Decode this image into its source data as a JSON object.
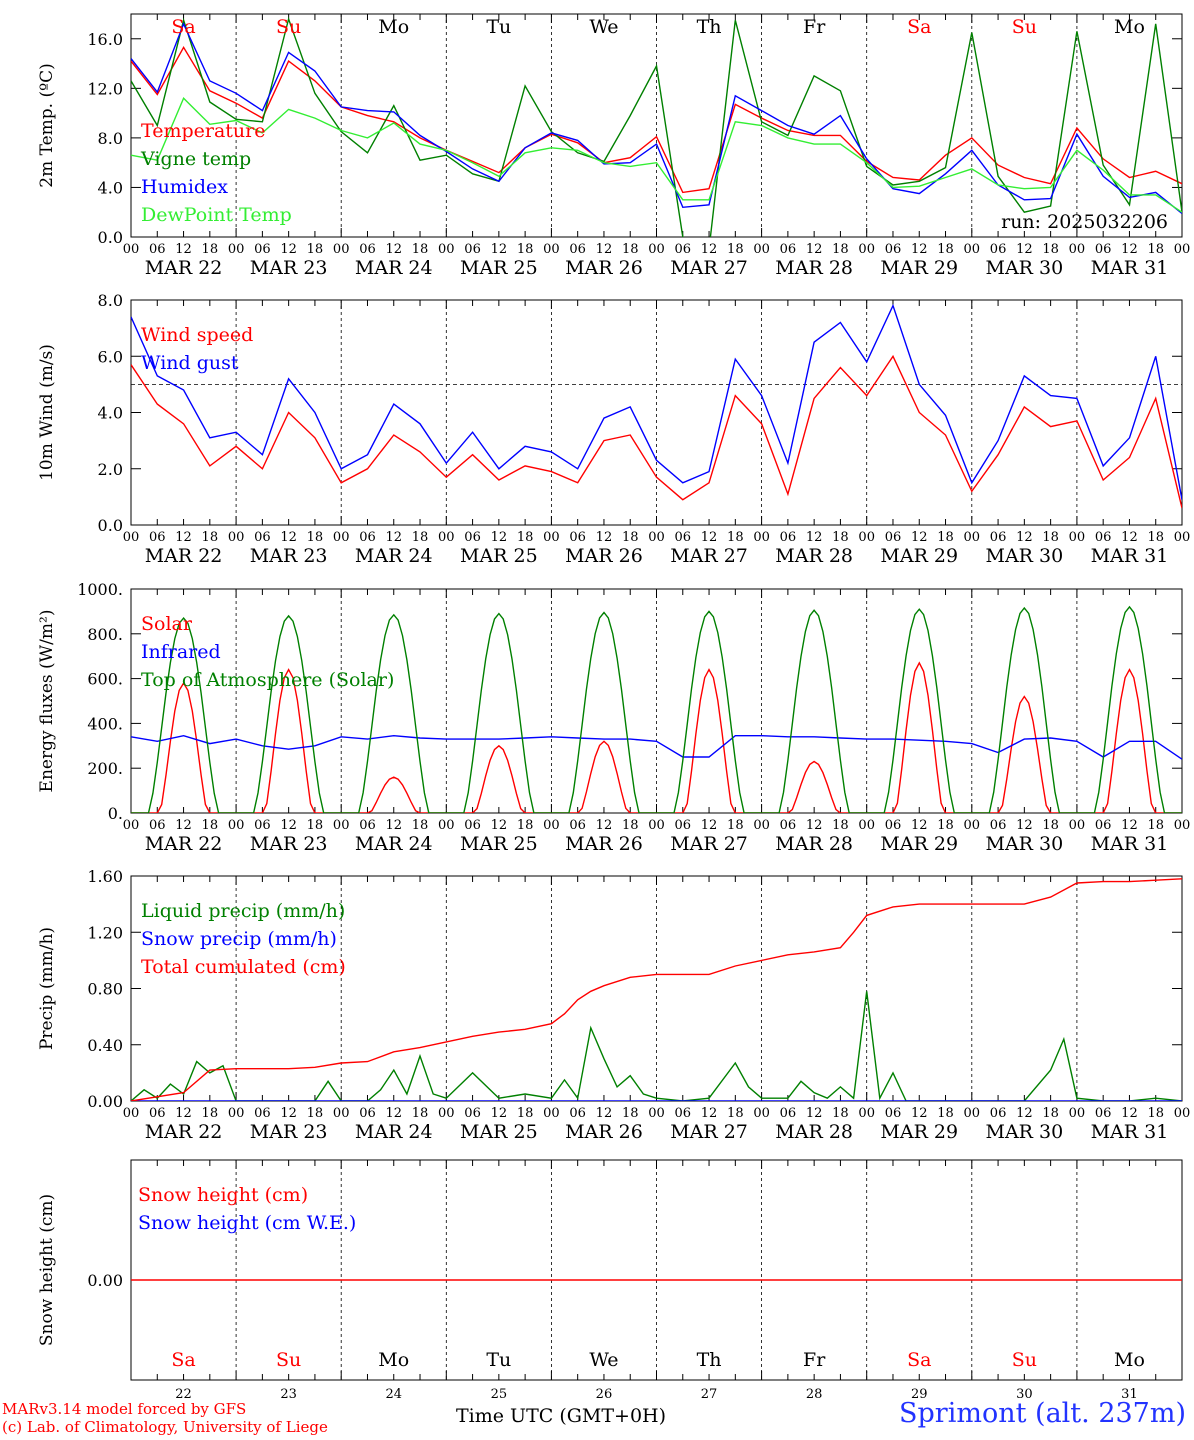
{
  "run_label": "run: 2025032206",
  "station_label": "Sprimont (alt. 237m)",
  "credit_lines": [
    "MARv3.14 model forced by GFS",
    "(c) Lab. of Climatology, University of Liege"
  ],
  "time_axis_label": "Time UTC (GMT+0H)",
  "colors": {
    "red": "#ff0000",
    "green": "#008000",
    "blue": "#0000ff",
    "lightgreen": "#33ee33",
    "black": "#000000"
  },
  "days": [
    {
      "abbr": "Sa",
      "date": "MAR 22",
      "num": "22",
      "weekend": true
    },
    {
      "abbr": "Su",
      "date": "MAR 23",
      "num": "23",
      "weekend": true
    },
    {
      "abbr": "Mo",
      "date": "MAR 24",
      "num": "24",
      "weekend": false
    },
    {
      "abbr": "Tu",
      "date": "MAR 25",
      "num": "25",
      "weekend": false
    },
    {
      "abbr": "We",
      "date": "MAR 26",
      "num": "26",
      "weekend": false
    },
    {
      "abbr": "Th",
      "date": "MAR 27",
      "num": "27",
      "weekend": false
    },
    {
      "abbr": "Fr",
      "date": "MAR 28",
      "num": "28",
      "weekend": false
    },
    {
      "abbr": "Sa",
      "date": "MAR 29",
      "num": "29",
      "weekend": true
    },
    {
      "abbr": "Su",
      "date": "MAR 30",
      "num": "30",
      "weekend": true
    },
    {
      "abbr": "Mo",
      "date": "MAR 31",
      "num": "31",
      "weekend": false
    }
  ],
  "hour_ticks": [
    "00",
    "06",
    "12",
    "18"
  ],
  "chart_data": [
    {
      "type": "line",
      "ylabel": "2m Temp. (ºC)",
      "ylim": [
        0,
        18
      ],
      "yticks": [
        0,
        4,
        8,
        12,
        16
      ],
      "ytick_labels": [
        "0.0",
        "4.0",
        "8.0",
        "12.0",
        "16.0"
      ],
      "grid": "vertical dashed lines at day boundaries",
      "legend_position": "left",
      "series": [
        {
          "name": "Temperature",
          "color": "#ff0000",
          "x": [
            0,
            6,
            12,
            18,
            24,
            30,
            36,
            42,
            48,
            54,
            60,
            66,
            72,
            78,
            84,
            90,
            96,
            102,
            108,
            114,
            120,
            126,
            132,
            138,
            144,
            150,
            156,
            162,
            168,
            174,
            180,
            186,
            192,
            198,
            204,
            210,
            216,
            222,
            228,
            234,
            240
          ],
          "y": [
            14.2,
            11.5,
            15.3,
            11.8,
            10.8,
            9.6,
            14.2,
            12.6,
            10.5,
            9.8,
            9.3,
            8.0,
            7.0,
            6.1,
            5.2,
            7.2,
            8.3,
            7.6,
            6.0,
            6.4,
            8.1,
            3.6,
            3.9,
            10.7,
            9.6,
            8.6,
            8.2,
            8.2,
            6.1,
            4.8,
            4.6,
            6.6,
            8.0,
            5.8,
            4.8,
            4.3,
            8.8,
            6.3,
            4.8,
            5.3,
            4.3
          ]
        },
        {
          "name": "Vigne temp",
          "color": "#008000",
          "x": [
            0,
            6,
            12,
            18,
            24,
            30,
            36,
            42,
            48,
            54,
            60,
            66,
            72,
            78,
            84,
            90,
            96,
            102,
            108,
            114,
            120,
            126,
            132,
            138,
            144,
            150,
            156,
            162,
            168,
            174,
            180,
            186,
            192,
            198,
            204,
            210,
            216,
            222,
            228,
            234,
            240
          ],
          "y": [
            12.6,
            9.0,
            17.5,
            10.9,
            9.5,
            9.3,
            17.6,
            11.6,
            8.5,
            6.8,
            10.6,
            6.2,
            6.6,
            5.1,
            4.5,
            12.2,
            8.5,
            6.8,
            6.1,
            9.8,
            13.8,
            0.0,
            -1.0,
            17.5,
            9.3,
            8.2,
            13.0,
            11.8,
            5.7,
            4.2,
            4.5,
            5.6,
            16.5,
            4.9,
            2.0,
            2.5,
            16.6,
            5.8,
            2.6,
            17.2,
            2.0
          ]
        },
        {
          "name": "Humidex",
          "color": "#0000ff",
          "x": [
            0,
            6,
            12,
            18,
            24,
            30,
            36,
            42,
            48,
            54,
            60,
            66,
            72,
            78,
            84,
            90,
            96,
            102,
            108,
            114,
            120,
            126,
            132,
            138,
            144,
            150,
            156,
            162,
            168,
            174,
            180,
            186,
            192,
            198,
            204,
            210,
            216,
            222,
            228,
            234,
            240
          ],
          "y": [
            14.4,
            11.7,
            17.2,
            12.6,
            11.6,
            10.2,
            14.9,
            13.4,
            10.5,
            10.2,
            10.1,
            8.2,
            6.9,
            5.5,
            4.5,
            7.2,
            8.4,
            7.8,
            5.9,
            6.0,
            7.5,
            2.4,
            2.6,
            11.4,
            10.2,
            9.0,
            8.3,
            9.8,
            6.3,
            3.9,
            3.5,
            5.1,
            7.0,
            4.2,
            3.0,
            3.1,
            8.3,
            4.9,
            3.2,
            3.6,
            1.9
          ]
        },
        {
          "name": "DewPoint Temp",
          "color": "#33ee33",
          "x": [
            0,
            6,
            12,
            18,
            24,
            30,
            36,
            42,
            48,
            54,
            60,
            66,
            72,
            78,
            84,
            90,
            96,
            102,
            108,
            114,
            120,
            126,
            132,
            138,
            144,
            150,
            156,
            162,
            168,
            174,
            180,
            186,
            192,
            198,
            204,
            210,
            216,
            222,
            228,
            234,
            240
          ],
          "y": [
            6.6,
            6.2,
            11.2,
            9.1,
            9.4,
            8.4,
            10.3,
            9.6,
            8.6,
            8.0,
            9.2,
            7.5,
            7.0,
            6.0,
            4.9,
            6.8,
            7.2,
            7.0,
            6.0,
            5.7,
            6.0,
            3.0,
            3.0,
            9.3,
            9.0,
            8.0,
            7.5,
            7.5,
            6.0,
            4.0,
            4.1,
            4.8,
            5.5,
            4.2,
            3.9,
            4.0,
            7.0,
            5.4,
            3.4,
            3.4,
            2.0
          ]
        }
      ]
    },
    {
      "type": "line",
      "ylabel": "10m Wind (m/s)",
      "ylim": [
        0,
        8
      ],
      "yticks": [
        0,
        2,
        4,
        6,
        8
      ],
      "ytick_labels": [
        "0.0",
        "2.0",
        "4.0",
        "6.0",
        "8.0"
      ],
      "reference_line": 5,
      "legend_position": "left",
      "series": [
        {
          "name": "Wind speed",
          "color": "#ff0000",
          "x": [
            0,
            6,
            12,
            18,
            24,
            30,
            36,
            42,
            48,
            54,
            60,
            66,
            72,
            78,
            84,
            90,
            96,
            102,
            108,
            114,
            120,
            126,
            132,
            138,
            144,
            150,
            156,
            162,
            168,
            174,
            180,
            186,
            192,
            198,
            204,
            210,
            216,
            222,
            228,
            234,
            240
          ],
          "y": [
            5.7,
            4.3,
            3.6,
            2.1,
            2.8,
            2.0,
            4.0,
            3.1,
            1.5,
            2.0,
            3.2,
            2.6,
            1.7,
            2.5,
            1.6,
            2.1,
            1.9,
            1.5,
            3.0,
            3.2,
            1.7,
            0.9,
            1.5,
            4.6,
            3.6,
            1.1,
            4.5,
            5.6,
            4.6,
            6.0,
            4.0,
            3.2,
            1.2,
            2.5,
            4.2,
            3.5,
            3.7,
            1.6,
            2.4,
            4.5,
            0.6
          ]
        },
        {
          "name": "Wind gust",
          "color": "#0000ff",
          "x": [
            0,
            6,
            12,
            18,
            24,
            30,
            36,
            42,
            48,
            54,
            60,
            66,
            72,
            78,
            84,
            90,
            96,
            102,
            108,
            114,
            120,
            126,
            132,
            138,
            144,
            150,
            156,
            162,
            168,
            174,
            180,
            186,
            192,
            198,
            204,
            210,
            216,
            222,
            228,
            234,
            240
          ],
          "y": [
            7.4,
            5.3,
            4.8,
            3.1,
            3.3,
            2.5,
            5.2,
            4.0,
            2.0,
            2.5,
            4.3,
            3.6,
            2.2,
            3.3,
            2.0,
            2.8,
            2.6,
            2.0,
            3.8,
            4.2,
            2.3,
            1.5,
            1.9,
            5.9,
            4.6,
            2.2,
            6.5,
            7.2,
            5.8,
            7.8,
            5.0,
            3.9,
            1.5,
            3.0,
            5.3,
            4.6,
            4.5,
            2.1,
            3.1,
            6.0,
            0.9
          ]
        }
      ]
    },
    {
      "type": "line",
      "ylabel": "Energy fluxes (W/m²)",
      "ylim": [
        0,
        1000
      ],
      "yticks": [
        0,
        200,
        400,
        600,
        800,
        1000
      ],
      "ytick_labels": [
        "0.",
        "200.",
        "400.",
        "600.",
        "800.",
        "1000."
      ],
      "legend_position": "left",
      "series": [
        {
          "name": "Solar",
          "color": "#ff0000",
          "peaks": [
            580,
            640,
            160,
            300,
            320,
            640,
            230,
            670,
            520,
            640
          ]
        },
        {
          "name": "Infrared",
          "color": "#0000ff",
          "x": [
            0,
            6,
            12,
            18,
            24,
            30,
            36,
            42,
            48,
            54,
            60,
            66,
            72,
            78,
            84,
            90,
            96,
            102,
            108,
            114,
            120,
            126,
            132,
            138,
            144,
            150,
            156,
            162,
            168,
            174,
            180,
            186,
            192,
            198,
            204,
            210,
            216,
            222,
            228,
            234,
            240
          ],
          "y": [
            340,
            320,
            345,
            310,
            330,
            300,
            285,
            300,
            340,
            330,
            345,
            335,
            330,
            330,
            330,
            335,
            340,
            335,
            330,
            330,
            320,
            250,
            250,
            345,
            345,
            340,
            340,
            335,
            330,
            330,
            325,
            320,
            310,
            270,
            330,
            335,
            320,
            250,
            320,
            320,
            240
          ]
        },
        {
          "name": "Top of Atmosphere (Solar)",
          "color": "#008000",
          "peaks": [
            870,
            880,
            885,
            890,
            895,
            900,
            905,
            910,
            915,
            920
          ]
        }
      ]
    },
    {
      "type": "line",
      "ylabel": "Precip (mm/h)",
      "ylim": [
        0,
        1.6
      ],
      "yticks": [
        0,
        0.4,
        0.8,
        1.2,
        1.6
      ],
      "ytick_labels": [
        "0.00",
        "0.40",
        "0.80",
        "1.20",
        "1.60"
      ],
      "legend_position": "left",
      "series": [
        {
          "name": "Liquid precip (mm/h)",
          "color": "#008000",
          "x": [
            0,
            3,
            6,
            9,
            12,
            15,
            18,
            21,
            24,
            30,
            36,
            42,
            45,
            48,
            54,
            57,
            60,
            63,
            66,
            69,
            72,
            78,
            84,
            90,
            96,
            99,
            102,
            105,
            108,
            111,
            114,
            117,
            120,
            126,
            132,
            138,
            141,
            144,
            150,
            153,
            156,
            159,
            162,
            165,
            168,
            171,
            174,
            177,
            180,
            198,
            204,
            210,
            213,
            216,
            222,
            228,
            234,
            240
          ],
          "y": [
            0.0,
            0.08,
            0.02,
            0.12,
            0.05,
            0.28,
            0.2,
            0.25,
            0.0,
            0.0,
            0.0,
            0.0,
            0.14,
            0.0,
            0.0,
            0.08,
            0.22,
            0.05,
            0.32,
            0.05,
            0.02,
            0.2,
            0.02,
            0.05,
            0.02,
            0.15,
            0.02,
            0.52,
            0.3,
            0.1,
            0.18,
            0.05,
            0.02,
            0.0,
            0.02,
            0.27,
            0.1,
            0.02,
            0.02,
            0.14,
            0.06,
            0.02,
            0.1,
            0.02,
            0.78,
            0.02,
            0.2,
            0.0,
            0.0,
            0.0,
            0.0,
            0.22,
            0.44,
            0.02,
            0.0,
            0.0,
            0.02,
            0.0
          ]
        },
        {
          "name": "Snow precip (mm/h)",
          "color": "#0000ff",
          "x": [
            0,
            240
          ],
          "y": [
            0,
            0
          ]
        },
        {
          "name": "Total cumulated (cm)",
          "color": "#ff0000",
          "x": [
            0,
            12,
            18,
            24,
            30,
            36,
            42,
            48,
            54,
            60,
            66,
            72,
            78,
            84,
            90,
            96,
            99,
            102,
            105,
            108,
            114,
            120,
            132,
            138,
            144,
            150,
            156,
            162,
            165,
            168,
            174,
            180,
            186,
            192,
            198,
            204,
            210,
            216,
            222,
            228,
            234,
            240
          ],
          "y": [
            0.0,
            0.06,
            0.22,
            0.23,
            0.23,
            0.23,
            0.24,
            0.27,
            0.28,
            0.35,
            0.38,
            0.42,
            0.46,
            0.49,
            0.51,
            0.55,
            0.62,
            0.72,
            0.78,
            0.82,
            0.88,
            0.9,
            0.9,
            0.96,
            1.0,
            1.04,
            1.06,
            1.09,
            1.2,
            1.32,
            1.38,
            1.4,
            1.4,
            1.4,
            1.4,
            1.4,
            1.45,
            1.55,
            1.56,
            1.56,
            1.57,
            1.58
          ]
        }
      ]
    },
    {
      "type": "line",
      "ylabel": "Snow height (cm)",
      "ytick_labels": [
        "0.00"
      ],
      "legend_position": "left",
      "series": [
        {
          "name": "Snow height (cm)",
          "color": "#ff0000",
          "x": [
            0,
            240
          ],
          "y": [
            0,
            0
          ]
        },
        {
          "name": "Snow height (cm W.E.)",
          "color": "#0000ff",
          "x": [
            0,
            240
          ],
          "y": [
            0,
            0
          ]
        }
      ]
    }
  ]
}
